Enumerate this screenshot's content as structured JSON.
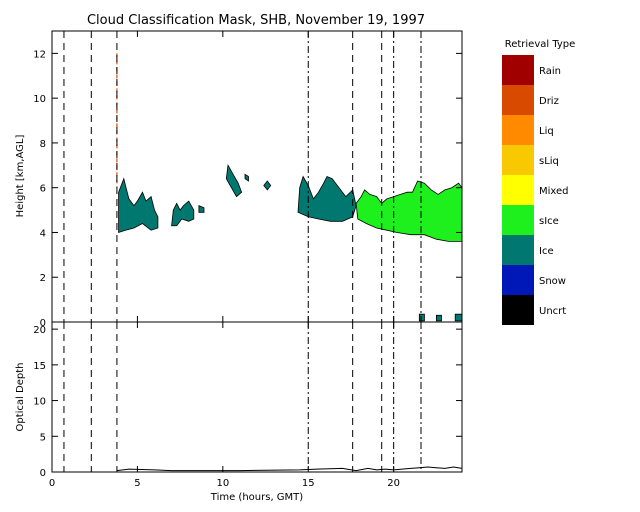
{
  "title": "Cloud Classification Mask, SHB, November 19, 1997",
  "legend": {
    "title": "Retrieval Type",
    "items": [
      {
        "label": "Rain",
        "color": "#a00000"
      },
      {
        "label": "Driz",
        "color": "#d84a00"
      },
      {
        "label": "Liq",
        "color": "#ff8a00"
      },
      {
        "label": "sLiq",
        "color": "#f8c800"
      },
      {
        "label": "Mixed",
        "color": "#ffff00"
      },
      {
        "label": "sIce",
        "color": "#1ef01e"
      },
      {
        "label": "Ice",
        "color": "#007870"
      },
      {
        "label": "Snow",
        "color": "#0018b8"
      },
      {
        "label": "Uncrt",
        "color": "#000000"
      }
    ]
  },
  "chart_data": [
    {
      "type": "area",
      "panel": "top",
      "ylabel": "Height [km,AGL]",
      "xlim": [
        0,
        24
      ],
      "ylim": [
        0,
        13
      ],
      "xticks": [
        0,
        5,
        10,
        15,
        20
      ],
      "yticks": [
        0,
        2,
        4,
        6,
        8,
        10,
        12
      ],
      "vertical_markers": [
        {
          "x": 0.7,
          "style": "dashed"
        },
        {
          "x": 2.3,
          "style": "dashed"
        },
        {
          "x": 3.8,
          "style": "dashed"
        },
        {
          "x": 15.0,
          "style": "dashdot"
        },
        {
          "x": 17.6,
          "style": "dashed"
        },
        {
          "x": 19.3,
          "style": "dashed"
        },
        {
          "x": 20.0,
          "style": "dashdot"
        },
        {
          "x": 21.6,
          "style": "dashdot"
        }
      ],
      "regions": [
        {
          "type": "Ice",
          "outline": [
            [
              3.9,
              4.0
            ],
            [
              3.9,
              5.8
            ],
            [
              4.2,
              6.4
            ],
            [
              4.5,
              5.5
            ],
            [
              4.8,
              5.2
            ],
            [
              5.0,
              5.4
            ],
            [
              5.3,
              5.8
            ],
            [
              5.5,
              5.4
            ],
            [
              5.8,
              5.6
            ],
            [
              6.0,
              5.0
            ],
            [
              6.2,
              4.7
            ],
            [
              6.2,
              4.2
            ],
            [
              5.8,
              4.1
            ],
            [
              5.3,
              4.4
            ],
            [
              4.8,
              4.2
            ],
            [
              4.3,
              4.1
            ]
          ]
        },
        {
          "type": "Ice",
          "outline": [
            [
              7.0,
              4.3
            ],
            [
              7.1,
              5.0
            ],
            [
              7.3,
              5.3
            ],
            [
              7.5,
              5.0
            ],
            [
              7.7,
              5.2
            ],
            [
              8.0,
              5.4
            ],
            [
              8.3,
              5.0
            ],
            [
              8.3,
              4.6
            ],
            [
              8.0,
              4.5
            ],
            [
              7.6,
              4.6
            ],
            [
              7.3,
              4.3
            ]
          ]
        },
        {
          "type": "Ice",
          "outline": [
            [
              8.6,
              4.9
            ],
            [
              8.6,
              5.2
            ],
            [
              8.9,
              5.1
            ],
            [
              8.9,
              4.9
            ]
          ]
        },
        {
          "type": "Ice",
          "outline": [
            [
              10.2,
              6.4
            ],
            [
              10.3,
              7.0
            ],
            [
              10.6,
              6.6
            ],
            [
              10.9,
              6.2
            ],
            [
              11.1,
              5.8
            ],
            [
              10.8,
              5.6
            ],
            [
              10.5,
              6.0
            ]
          ]
        },
        {
          "type": "Ice",
          "outline": [
            [
              11.3,
              6.4
            ],
            [
              11.3,
              6.6
            ],
            [
              11.5,
              6.5
            ],
            [
              11.5,
              6.3
            ]
          ]
        },
        {
          "type": "Ice",
          "outline": [
            [
              12.4,
              6.1
            ],
            [
              12.6,
              6.3
            ],
            [
              12.8,
              6.1
            ],
            [
              12.6,
              5.9
            ]
          ]
        },
        {
          "type": "Ice",
          "outline": [
            [
              14.4,
              4.9
            ],
            [
              14.5,
              6.0
            ],
            [
              14.7,
              6.5
            ],
            [
              15.0,
              6.1
            ],
            [
              15.3,
              5.5
            ],
            [
              15.6,
              5.8
            ],
            [
              15.9,
              6.2
            ],
            [
              16.1,
              6.5
            ],
            [
              16.4,
              6.4
            ],
            [
              16.8,
              6.0
            ],
            [
              17.2,
              5.6
            ],
            [
              17.6,
              5.9
            ],
            [
              17.8,
              5.2
            ],
            [
              17.6,
              4.7
            ],
            [
              17.0,
              4.5
            ],
            [
              16.3,
              4.5
            ],
            [
              15.6,
              4.6
            ],
            [
              15.0,
              4.7
            ]
          ]
        },
        {
          "type": "sIce",
          "outline": [
            [
              17.8,
              5.3
            ],
            [
              18.1,
              5.6
            ],
            [
              18.3,
              5.9
            ],
            [
              18.6,
              5.7
            ],
            [
              19.0,
              5.6
            ],
            [
              19.3,
              5.3
            ],
            [
              19.6,
              5.5
            ],
            [
              20.0,
              5.6
            ],
            [
              20.4,
              5.7
            ],
            [
              20.8,
              5.8
            ],
            [
              21.1,
              5.8
            ],
            [
              21.4,
              6.3
            ],
            [
              21.8,
              6.2
            ],
            [
              22.2,
              5.9
            ],
            [
              22.6,
              5.7
            ],
            [
              23.0,
              5.9
            ],
            [
              23.4,
              6.0
            ],
            [
              23.8,
              6.2
            ],
            [
              24.0,
              6.0
            ],
            [
              24.0,
              3.6
            ],
            [
              23.2,
              3.6
            ],
            [
              22.5,
              3.7
            ],
            [
              21.8,
              3.9
            ],
            [
              21.0,
              3.9
            ],
            [
              20.2,
              4.0
            ],
            [
              19.6,
              4.1
            ],
            [
              19.0,
              4.2
            ],
            [
              18.4,
              4.4
            ],
            [
              17.9,
              4.6
            ]
          ]
        },
        {
          "type": "Ice",
          "outline": [
            [
              21.5,
              0.05
            ],
            [
              21.5,
              0.35
            ],
            [
              21.8,
              0.35
            ],
            [
              21.8,
              0.05
            ]
          ]
        },
        {
          "type": "Ice",
          "outline": [
            [
              22.5,
              0.05
            ],
            [
              22.5,
              0.3
            ],
            [
              22.8,
              0.3
            ],
            [
              22.8,
              0.05
            ]
          ]
        },
        {
          "type": "Ice",
          "outline": [
            [
              23.6,
              0.05
            ],
            [
              23.6,
              0.35
            ],
            [
              24.0,
              0.35
            ],
            [
              24.0,
              0.05
            ]
          ]
        }
      ]
    },
    {
      "type": "line",
      "panel": "bottom",
      "xlabel": "Time (hours, GMT)",
      "ylabel": "Optical Depth",
      "xlim": [
        0,
        24
      ],
      "ylim": [
        0,
        21
      ],
      "xticks": [
        0,
        5,
        10,
        15,
        20
      ],
      "yticks": [
        0,
        5,
        10,
        15,
        20
      ],
      "series": [
        {
          "x": [
            3.8,
            4.5,
            6.0,
            7.0,
            8.5,
            10.0,
            11.0,
            14.5,
            15.5,
            17.0,
            17.8,
            18.5,
            19.0,
            19.5,
            20.0,
            20.5,
            21.0,
            21.5,
            22.0,
            22.5,
            23.0,
            23.5,
            24.0
          ],
          "y": [
            0.2,
            0.4,
            0.3,
            0.2,
            0.2,
            0.2,
            0.2,
            0.3,
            0.4,
            0.5,
            0.2,
            0.5,
            0.3,
            0.4,
            0.3,
            0.4,
            0.5,
            0.6,
            0.7,
            0.6,
            0.5,
            0.7,
            0.5
          ]
        }
      ]
    }
  ]
}
